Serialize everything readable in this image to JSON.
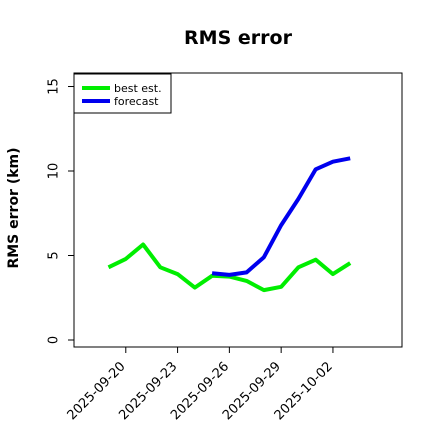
{
  "chart_data": {
    "type": "line",
    "title": "RMS error",
    "xlabel": "",
    "ylabel": "RMS error (km)",
    "x_ticks": [
      "2025-09-20",
      "2025-09-23",
      "2025-09-26",
      "2025-09-29",
      "2025-10-02"
    ],
    "y_ticks": [
      "0",
      "5",
      "10",
      "15"
    ],
    "xlim": [
      "2025-09-17",
      "2025-10-06"
    ],
    "ylim": [
      0,
      15.8
    ],
    "grid": false,
    "legend_position": "top-left",
    "series": [
      {
        "name": "best est.",
        "color": "#00ee00",
        "points": [
          {
            "x": "2025-09-19",
            "y": 4.3
          },
          {
            "x": "2025-09-20",
            "y": 4.8
          },
          {
            "x": "2025-09-21",
            "y": 5.65
          },
          {
            "x": "2025-09-22",
            "y": 4.3
          },
          {
            "x": "2025-09-23",
            "y": 3.9
          },
          {
            "x": "2025-09-24",
            "y": 3.1
          },
          {
            "x": "2025-09-25",
            "y": 3.8
          },
          {
            "x": "2025-09-26",
            "y": 3.75
          },
          {
            "x": "2025-09-27",
            "y": 3.5
          },
          {
            "x": "2025-09-28",
            "y": 2.95
          },
          {
            "x": "2025-09-29",
            "y": 3.15
          },
          {
            "x": "2025-09-30",
            "y": 4.3
          },
          {
            "x": "2025-10-01",
            "y": 4.75
          },
          {
            "x": "2025-10-02",
            "y": 3.9
          },
          {
            "x": "2025-10-03",
            "y": 4.55
          }
        ]
      },
      {
        "name": "forecast",
        "color": "#0000ee",
        "points": [
          {
            "x": "2025-09-25",
            "y": 3.95
          },
          {
            "x": "2025-09-26",
            "y": 3.85
          },
          {
            "x": "2025-09-27",
            "y": 4.0
          },
          {
            "x": "2025-09-28",
            "y": 4.9
          },
          {
            "x": "2025-09-29",
            "y": 6.8
          },
          {
            "x": "2025-09-30",
            "y": 8.35
          },
          {
            "x": "2025-10-01",
            "y": 10.1
          },
          {
            "x": "2025-10-02",
            "y": 10.55
          },
          {
            "x": "2025-10-03",
            "y": 10.75
          }
        ]
      }
    ]
  }
}
